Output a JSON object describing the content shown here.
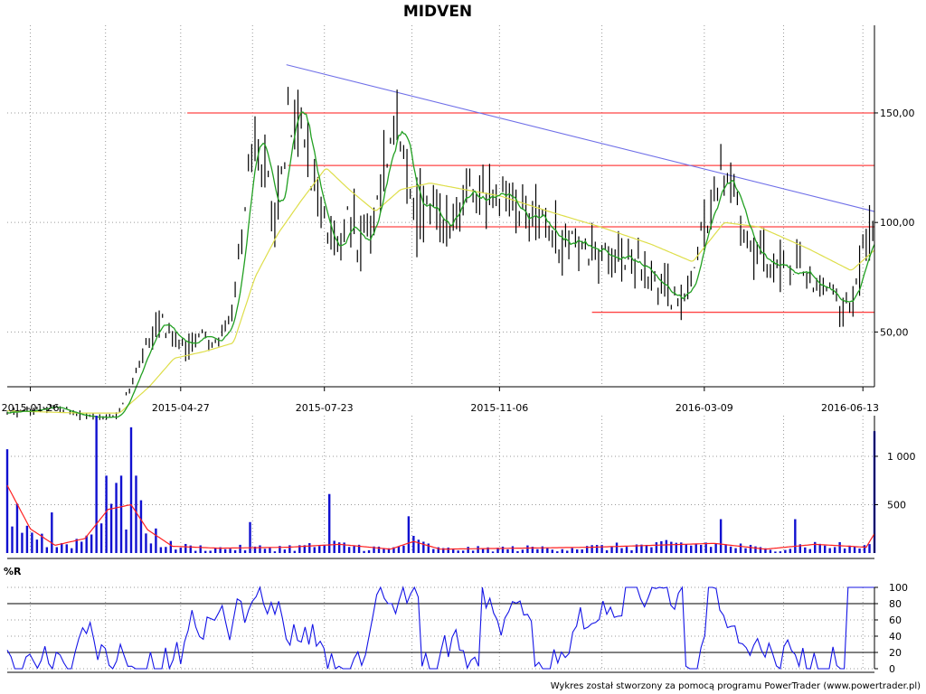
{
  "chart_data": {
    "type": "stock-chart",
    "title": "MIDVEN",
    "credit": "Wykres został stworzony za pomocą programu PowerTrader (www.powertrader.pl)",
    "price": {
      "ylim": [
        25,
        190
      ],
      "yticks": [
        {
          "value": 50,
          "label": "50,00"
        },
        {
          "value": 100,
          "label": "100,00"
        },
        {
          "value": 150,
          "label": "150,00"
        }
      ],
      "xlim": [
        "2015-01-12",
        "2016-06-20"
      ],
      "xticks": [
        {
          "value": "2015-01-26",
          "label": "2015-01-26"
        },
        {
          "value": "2015-04-27",
          "label": "2015-04-27"
        },
        {
          "value": "2015-07-23",
          "label": "2015-07-23"
        },
        {
          "value": "2015-11-06",
          "label": "2015-11-06"
        },
        {
          "value": "2016-03-09",
          "label": "2016-03-09"
        },
        {
          "value": "2016-06-13",
          "label": "2016-06-13"
        }
      ],
      "support_resistance": [
        {
          "from": "2015-05-01",
          "to": "2016-06-20",
          "value": 150
        },
        {
          "from": "2015-07-01",
          "to": "2016-06-20",
          "value": 126
        },
        {
          "from": "2015-08-20",
          "to": "2016-06-20",
          "value": 98
        },
        {
          "from": "2016-01-01",
          "to": "2016-06-20",
          "value": 59
        }
      ],
      "trendline": {
        "from": [
          "2015-06-30",
          172
        ],
        "to": [
          "2016-06-20",
          105
        ]
      },
      "close_points": [
        [
          "2015-01-12",
          13
        ],
        [
          "2015-01-26",
          14
        ],
        [
          "2015-02-09",
          16
        ],
        [
          "2015-02-23",
          12
        ],
        [
          "2015-03-09",
          11
        ],
        [
          "2015-03-20",
          12
        ],
        [
          "2015-03-30",
          30
        ],
        [
          "2015-04-07",
          45
        ],
        [
          "2015-04-14",
          55
        ],
        [
          "2015-04-22",
          48
        ],
        [
          "2015-05-01",
          44
        ],
        [
          "2015-05-10",
          48
        ],
        [
          "2015-05-20",
          45
        ],
        [
          "2015-05-28",
          58
        ],
        [
          "2015-06-03",
          100
        ],
        [
          "2015-06-10",
          140
        ],
        [
          "2015-06-17",
          130
        ],
        [
          "2015-06-24",
          100
        ],
        [
          "2015-07-01",
          145
        ],
        [
          "2015-07-08",
          155
        ],
        [
          "2015-07-15",
          120
        ],
        [
          "2015-07-23",
          100
        ],
        [
          "2015-07-30",
          85
        ],
        [
          "2015-08-06",
          100
        ],
        [
          "2015-08-14",
          90
        ],
        [
          "2015-08-22",
          100
        ],
        [
          "2015-08-30",
          130
        ],
        [
          "2015-09-06",
          148
        ],
        [
          "2015-09-14",
          110
        ],
        [
          "2015-09-24",
          105
        ],
        [
          "2015-10-05",
          100
        ],
        [
          "2015-10-15",
          115
        ],
        [
          "2015-10-25",
          110
        ],
        [
          "2015-11-06",
          112
        ],
        [
          "2015-11-20",
          105
        ],
        [
          "2015-12-05",
          95
        ],
        [
          "2015-12-20",
          90
        ],
        [
          "2016-01-05",
          88
        ],
        [
          "2016-01-20",
          85
        ],
        [
          "2016-02-05",
          78
        ],
        [
          "2016-02-20",
          64
        ],
        [
          "2016-03-01",
          72
        ],
        [
          "2016-03-09",
          100
        ],
        [
          "2016-03-20",
          120
        ],
        [
          "2016-03-30",
          105
        ],
        [
          "2016-04-10",
          85
        ],
        [
          "2016-04-25",
          78
        ],
        [
          "2016-05-10",
          76
        ],
        [
          "2016-05-25",
          68
        ],
        [
          "2016-06-05",
          62
        ],
        [
          "2016-06-13",
          85
        ],
        [
          "2016-06-20",
          97
        ]
      ],
      "ma_long_points": [
        [
          "2015-01-12",
          14
        ],
        [
          "2015-02-23",
          13
        ],
        [
          "2015-03-20",
          13
        ],
        [
          "2015-04-07",
          25
        ],
        [
          "2015-04-22",
          38
        ],
        [
          "2015-05-10",
          41
        ],
        [
          "2015-05-28",
          45
        ],
        [
          "2015-06-10",
          75
        ],
        [
          "2015-06-24",
          95
        ],
        [
          "2015-07-08",
          110
        ],
        [
          "2015-07-23",
          125
        ],
        [
          "2015-08-06",
          115
        ],
        [
          "2015-08-22",
          105
        ],
        [
          "2015-09-06",
          115
        ],
        [
          "2015-09-24",
          118
        ],
        [
          "2015-10-15",
          115
        ],
        [
          "2015-11-06",
          112
        ],
        [
          "2015-12-05",
          105
        ],
        [
          "2016-01-05",
          98
        ],
        [
          "2016-02-05",
          90
        ],
        [
          "2016-03-01",
          82
        ],
        [
          "2016-03-20",
          100
        ],
        [
          "2016-04-10",
          98
        ],
        [
          "2016-05-10",
          88
        ],
        [
          "2016-06-05",
          78
        ],
        [
          "2016-06-20",
          88
        ]
      ]
    },
    "volume": {
      "ylim": [
        0,
        1420
      ],
      "yticks": [
        {
          "value": 500,
          "label": "500"
        },
        {
          "value": 1000,
          "label": "1 000"
        }
      ],
      "spikes": [
        [
          "2015-03-09",
          1420
        ],
        [
          "2015-03-28",
          1300
        ],
        [
          "2015-03-14",
          800
        ],
        [
          "2015-03-22",
          800
        ],
        [
          "2015-03-31",
          800
        ],
        [
          "2015-02-09",
          420
        ],
        [
          "2015-07-26",
          610
        ],
        [
          "2016-06-20",
          1260
        ],
        [
          "2015-09-12",
          380
        ],
        [
          "2015-06-10",
          320
        ],
        [
          "2016-03-20",
          350
        ],
        [
          "2016-05-03",
          350
        ]
      ],
      "ma_points": [
        [
          "2015-01-12",
          700
        ],
        [
          "2015-01-26",
          250
        ],
        [
          "2015-02-10",
          80
        ],
        [
          "2015-02-28",
          150
        ],
        [
          "2015-03-14",
          450
        ],
        [
          "2015-03-28",
          500
        ],
        [
          "2015-04-07",
          240
        ],
        [
          "2015-04-22",
          70
        ],
        [
          "2015-05-20",
          50
        ],
        [
          "2015-07-01",
          60
        ],
        [
          "2015-08-01",
          90
        ],
        [
          "2015-09-01",
          40
        ],
        [
          "2015-09-15",
          120
        ],
        [
          "2015-10-01",
          40
        ],
        [
          "2016-01-01",
          60
        ],
        [
          "2016-03-15",
          100
        ],
        [
          "2016-04-15",
          40
        ],
        [
          "2016-05-15",
          90
        ],
        [
          "2016-06-15",
          60
        ],
        [
          "2016-06-20",
          200
        ]
      ]
    },
    "williams_r": {
      "title": "%R",
      "ylim": [
        0,
        100
      ],
      "yticks": [
        {
          "value": 0,
          "label": "0"
        },
        {
          "value": 20,
          "label": "20"
        },
        {
          "value": 40,
          "label": "40"
        },
        {
          "value": 60,
          "label": "60"
        },
        {
          "value": 80,
          "label": "80"
        },
        {
          "value": 100,
          "label": "100"
        }
      ],
      "bands": [
        20,
        80
      ]
    }
  },
  "colors": {
    "candle": "#000000",
    "ma_short": "#22a022",
    "ma_long": "#dede4a",
    "support": "#ff4545",
    "trendline": "#7070e8",
    "volume_bar": "#1010d0",
    "volume_ma": "#ff2020",
    "williams": "#1414e6"
  }
}
